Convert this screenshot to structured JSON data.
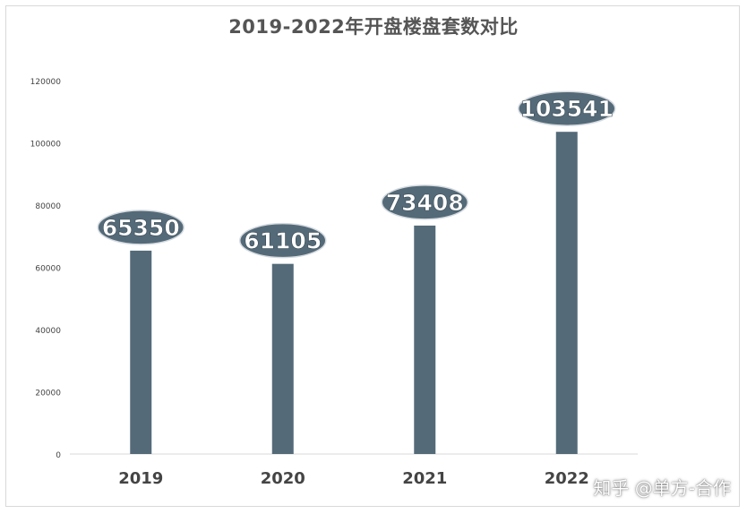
{
  "chart_data": {
    "type": "bar",
    "title": "2019-2022年开盘楼盘套数对比",
    "categories": [
      "2019",
      "2020",
      "2021",
      "2022"
    ],
    "values": [
      65350,
      61105,
      73408,
      103541
    ],
    "yticks": [
      "0",
      "20000",
      "40000",
      "60000",
      "80000",
      "100000",
      "120000"
    ],
    "ylim": [
      0,
      120000
    ],
    "xlabel": "",
    "ylabel": "",
    "grid": false,
    "bar_color": "#546a78",
    "label_color": "#ffffff"
  },
  "watermark": "知乎 @单方-合作"
}
